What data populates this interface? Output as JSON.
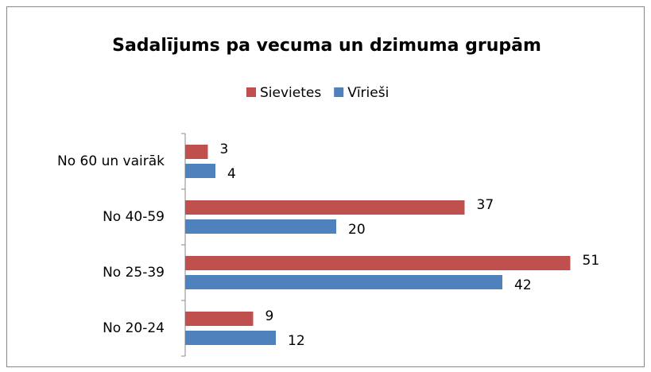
{
  "chart_data": {
    "type": "hbar",
    "title": "Sadalījums pa vecuma un dzimuma grupām",
    "categories": [
      "No 60 un vairāk",
      "No 40-59",
      "No 25-39",
      "No 20-24"
    ],
    "series": [
      {
        "name": "Sievietes",
        "color": "#c0504d",
        "values": [
          3,
          37,
          51,
          9
        ]
      },
      {
        "name": "Vīrieši",
        "color": "#4f81bd",
        "values": [
          4,
          20,
          42,
          12
        ]
      }
    ],
    "legend": "top"
  }
}
